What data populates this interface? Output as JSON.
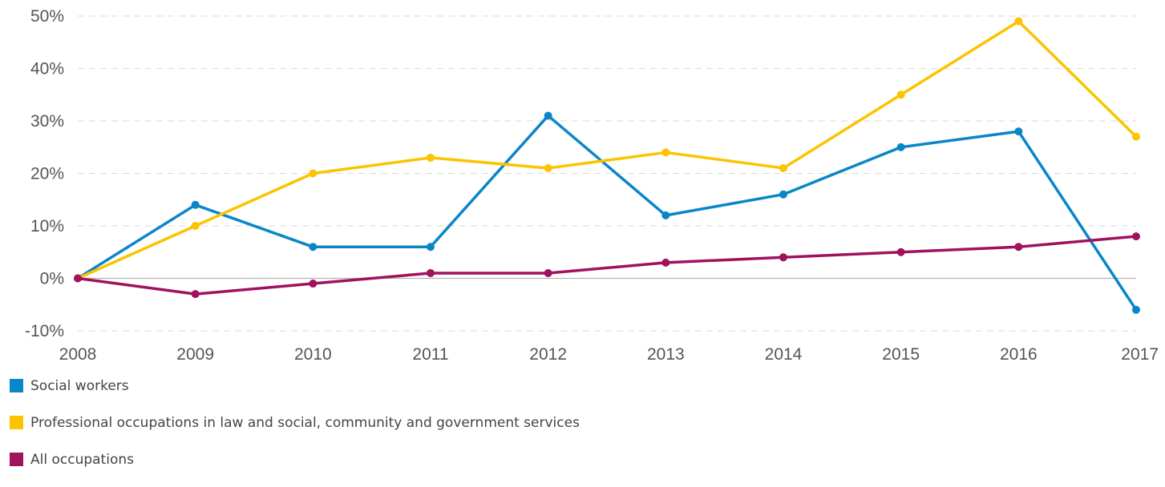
{
  "chart_data": {
    "type": "line",
    "x": [
      "2008",
      "2009",
      "2010",
      "2011",
      "2012",
      "2013",
      "2014",
      "2015",
      "2016",
      "2017"
    ],
    "ylim": [
      -10,
      50
    ],
    "yticks": [
      "-10%",
      "0%",
      "10%",
      "20%",
      "30%",
      "40%",
      "50%"
    ],
    "ytick_values": [
      -10,
      0,
      10,
      20,
      30,
      40,
      50
    ],
    "grid": true,
    "legend_placement": "bottom-left",
    "series": [
      {
        "name": "Social workers",
        "color": "#0a86c8",
        "values": [
          0,
          14,
          6,
          6,
          31,
          12,
          16,
          25,
          28,
          -6
        ]
      },
      {
        "name": "Professional occupations in law and social, community and government services",
        "color": "#fbc400",
        "values": [
          0,
          10,
          20,
          23,
          21,
          24,
          21,
          35,
          49,
          27
        ]
      },
      {
        "name": "All occupations",
        "color": "#a1115e",
        "values": [
          0,
          -3,
          -1,
          1,
          1,
          3,
          4,
          5,
          6,
          8
        ]
      }
    ]
  }
}
